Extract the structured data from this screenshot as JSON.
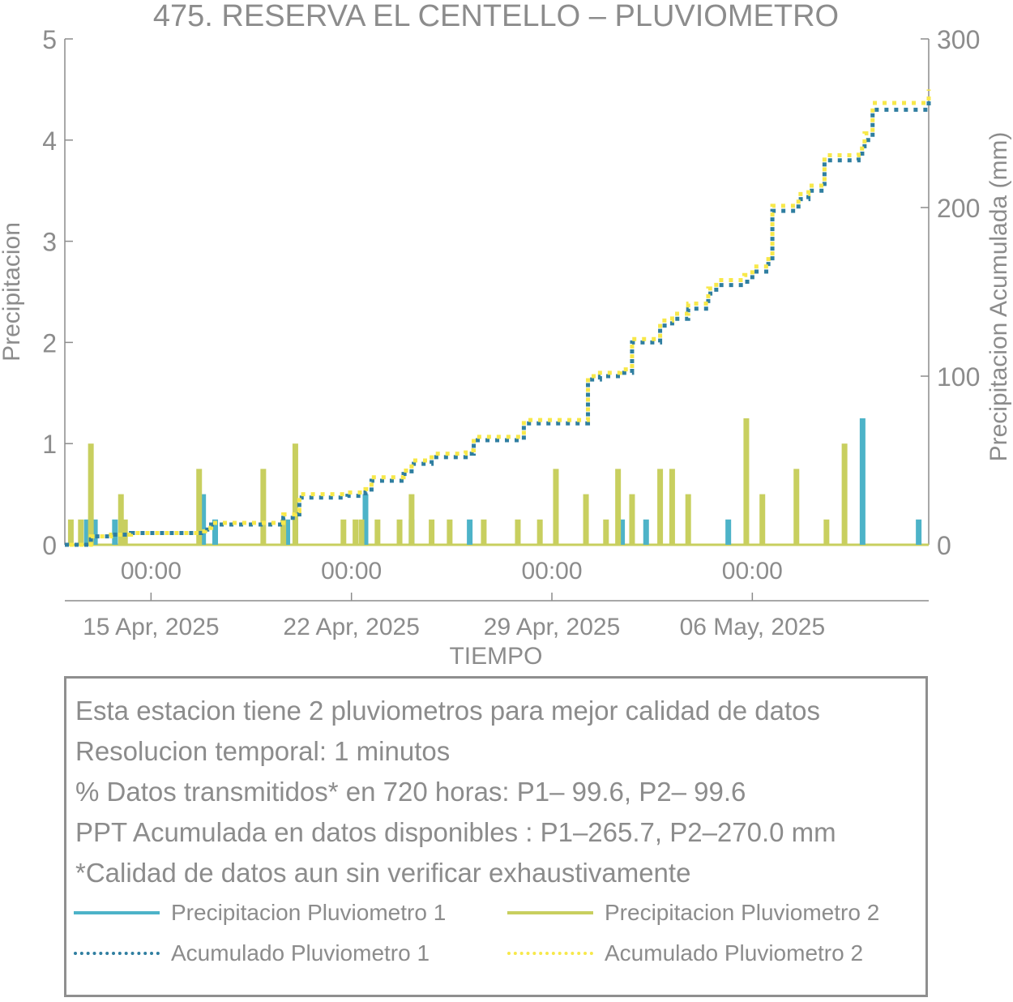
{
  "chart_data": {
    "type": "bar",
    "title": "475. RESERVA EL CENTELLO – PLUVIOMETRO",
    "xlabel": "TIEMPO",
    "ylabel_left": "Precipitacion",
    "ylabel_right": "Precipitacion Acumulada (mm)",
    "y_left_lim": [
      0,
      5
    ],
    "y_left_ticks": [
      "0",
      "1",
      "2",
      "3",
      "4",
      "5"
    ],
    "y_right_lim": [
      0,
      300
    ],
    "y_right_ticks": [
      "0",
      "100",
      "200",
      "300"
    ],
    "x_range_days": [
      -4.3,
      38.8
    ],
    "x_ticks": [
      {
        "day": 0,
        "time": "00:00",
        "date": "15 Apr, 2025"
      },
      {
        "day": 10,
        "time": "00:00",
        "date": "22 Apr, 2025"
      },
      {
        "day": 20,
        "time": "00:00",
        "date": "29 Apr, 2025"
      },
      {
        "day": 30,
        "time": "00:00",
        "date": "06 May, 2025"
      }
    ],
    "grid": false,
    "series": [
      {
        "name": "Precipitacion Pluviometro 1",
        "type": "bar",
        "color": "#4db3c8",
        "x": [
          -3.2,
          -2.8,
          -1.8,
          2.6,
          3.2,
          6.8,
          7.2,
          10.7,
          13.0,
          15.9,
          23.5,
          24.7,
          28.8,
          35.5,
          38.3
        ],
        "values": [
          0.25,
          0.25,
          0.25,
          0.5,
          0.25,
          0.25,
          0.25,
          0.5,
          0.25,
          0.25,
          0.25,
          0.25,
          0.25,
          1.25,
          0.25
        ]
      },
      {
        "name": "Precipitacion Pluviometro 2",
        "type": "bar",
        "color": "#c8cf5f",
        "x": [
          -4.0,
          -3.5,
          -3.0,
          -1.5,
          -1.3,
          2.4,
          5.6,
          6.6,
          7.2,
          9.6,
          10.2,
          10.5,
          11.3,
          12.4,
          13.0,
          14.0,
          14.9,
          16.6,
          18.3,
          19.4,
          20.2,
          21.7,
          22.7,
          23.3,
          24.0,
          25.4,
          26.0,
          26.8,
          29.7,
          30.5,
          32.2,
          33.7,
          34.6
        ],
        "values": [
          0.25,
          0.25,
          1.0,
          0.5,
          0.25,
          0.75,
          0.75,
          0.25,
          1.0,
          0.25,
          0.25,
          0.25,
          0.25,
          0.25,
          0.5,
          0.25,
          0.25,
          0.25,
          0.25,
          0.25,
          0.75,
          0.5,
          0.25,
          0.75,
          0.5,
          0.75,
          0.75,
          0.5,
          1.25,
          0.5,
          0.75,
          0.25,
          1.0
        ]
      },
      {
        "name": "Acumulado Pluviometro 1",
        "type": "line",
        "axis": "right",
        "color": "#2f7ea0",
        "x": [
          -4.3,
          -3.5,
          -3.0,
          -2.0,
          -1.0,
          2.4,
          2.7,
          3.0,
          5.6,
          6.6,
          7.2,
          7.4,
          9.8,
          10.7,
          11.0,
          12.6,
          13.0,
          14.0,
          15.7,
          16.1,
          18.5,
          18.6,
          19.0,
          21.4,
          21.8,
          22.4,
          23.4,
          24.0,
          25.4,
          26.0,
          26.8,
          27.8,
          28.2,
          29.6,
          30.0,
          30.8,
          31.0,
          32.3,
          32.8,
          33.6,
          35.3,
          35.6,
          36.0,
          38.8
        ],
        "values": [
          0,
          0,
          5,
          6,
          7,
          7,
          9,
          12,
          12,
          16,
          18,
          28,
          29,
          31,
          38,
          42,
          48,
          52,
          54,
          62,
          62,
          72,
          72,
          72,
          98,
          100,
          102,
          120,
          130,
          134,
          140,
          149,
          154,
          156,
          162,
          168,
          198,
          205,
          210,
          228,
          232,
          240,
          258,
          266
        ]
      },
      {
        "name": "Acumulado Pluviometro 2",
        "type": "line",
        "axis": "right",
        "color": "#f7e84a",
        "x": [
          -4.3,
          -3.5,
          -3.0,
          -2.0,
          -1.0,
          2.4,
          2.7,
          3.0,
          5.6,
          6.6,
          7.2,
          7.4,
          9.8,
          10.7,
          11.0,
          12.6,
          13.0,
          14.0,
          15.7,
          16.1,
          18.5,
          18.6,
          19.0,
          21.4,
          21.8,
          22.4,
          23.4,
          24.0,
          25.4,
          26.0,
          26.8,
          27.8,
          28.2,
          29.6,
          30.0,
          30.8,
          31.0,
          32.3,
          32.8,
          33.6,
          35.3,
          35.6,
          36.0,
          38.8
        ],
        "values": [
          0,
          0,
          5,
          6,
          7,
          8,
          10,
          13,
          13,
          18,
          20,
          30,
          31,
          33,
          40,
          44,
          50,
          54,
          56,
          64,
          64,
          74,
          74,
          74,
          100,
          102,
          104,
          122,
          133,
          137,
          143,
          152,
          157,
          160,
          165,
          171,
          201,
          208,
          213,
          231,
          235,
          244,
          262,
          270
        ]
      }
    ]
  },
  "info": {
    "line1": "Esta estacion tiene 2 pluviometros para mejor calidad de datos",
    "line2": "Resolucion temporal: 1 minutos",
    "line3": "% Datos transmitidos* en 720 horas: P1– 99.6, P2– 99.6",
    "line4": "PPT Acumulada en datos disponibles : P1–265.7, P2–270.0 mm",
    "line5": "*Calidad de datos aun sin verificar exhaustivamente"
  },
  "legend": {
    "p1_label": "Precipitacion Pluviometro 1",
    "p2_label": "Precipitacion Pluviometro 2",
    "a1_label": "Acumulado Pluviometro 1",
    "a2_label": "Acumulado Pluviometro 2"
  },
  "colors": {
    "p1": "#4db3c8",
    "p2": "#c8cf5f",
    "a1": "#2f7ea0",
    "a2": "#f7e84a",
    "axis": "#8c8c8c"
  }
}
